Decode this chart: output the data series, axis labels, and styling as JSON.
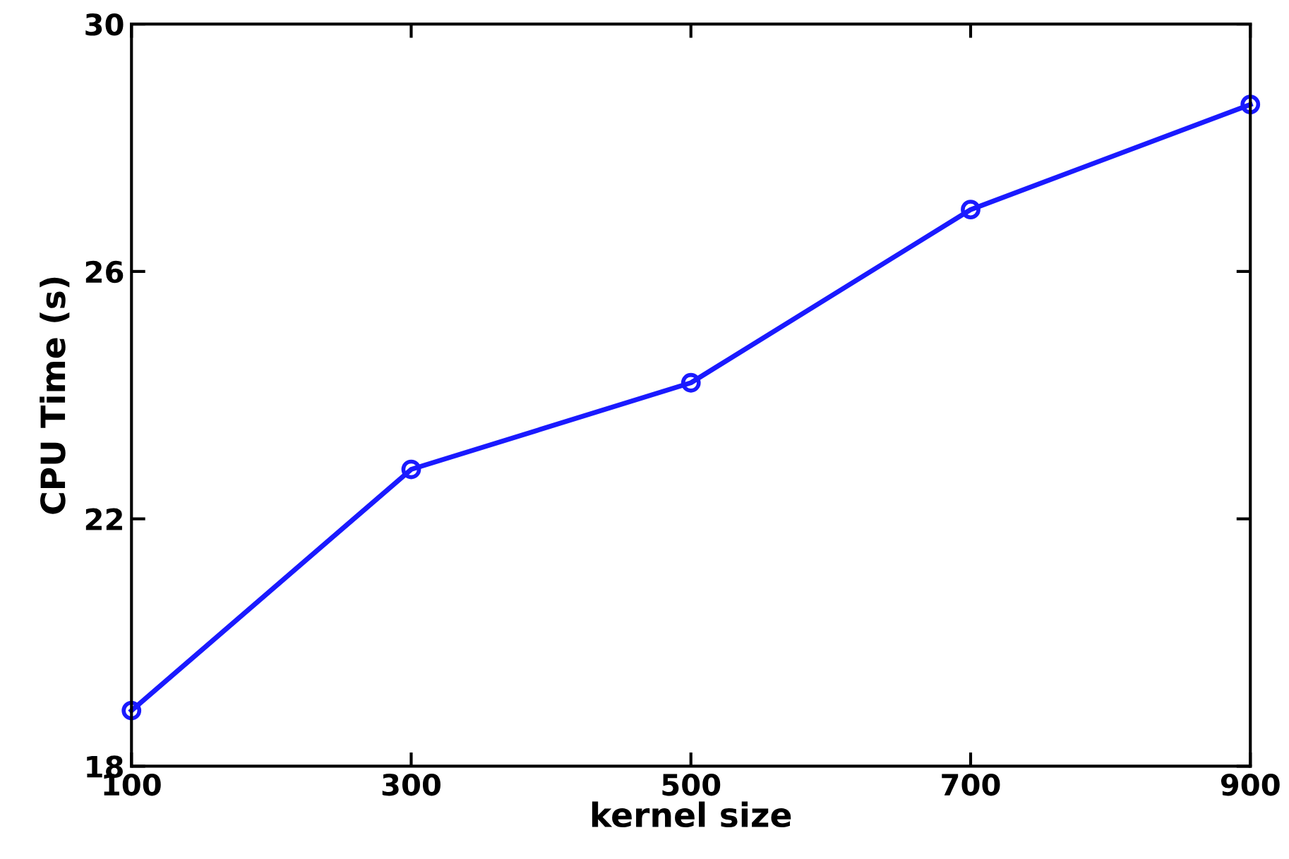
{
  "chart_data": {
    "type": "line",
    "xlabel": "kernel size",
    "ylabel": "CPU Time (s)",
    "x": [
      100,
      300,
      500,
      700,
      900
    ],
    "series": [
      {
        "color": "#1a1aff",
        "values": [
          18.9,
          22.8,
          24.2,
          27.0,
          28.7
        ]
      }
    ],
    "xlim": [
      100,
      900
    ],
    "xticks": [
      100,
      300,
      500,
      700,
      900
    ],
    "ylim": [
      18,
      30
    ],
    "yticks": [
      18,
      22,
      26,
      30
    ],
    "grid": false,
    "marker": "circle",
    "line_style": "solid"
  }
}
